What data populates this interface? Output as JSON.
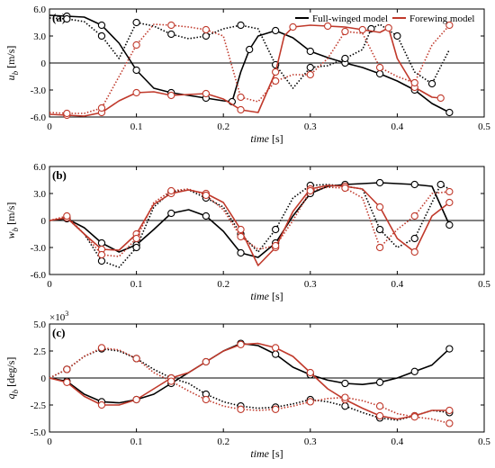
{
  "figure": {
    "legend": {
      "placement": "top-right (inside panel a)",
      "items": [
        {
          "label": "Full-winged model",
          "color": "#000000"
        },
        {
          "label": "Forewing model",
          "color": "#c0392b"
        }
      ]
    },
    "style_notes": "solid line = one wing trace, dotted line = other trace; open circle markers on each curve"
  },
  "chart_data": [
    {
      "type": "line",
      "panel_label": "(a)",
      "xlabel": "time [s]",
      "ylabel_main": "u",
      "ylabel_sub": "b",
      "ylabel_unit": "[m/s]",
      "xlim": [
        0,
        0.5
      ],
      "ylim": [
        -6,
        6
      ],
      "xticks": [
        "0",
        "0.1",
        "0.2",
        "0.3",
        "0.4",
        "0.5"
      ],
      "yticks": [
        "-6.0",
        "-3.0",
        "0",
        "3.0",
        "6.0"
      ],
      "zero_line": true,
      "series": [
        {
          "color": "#000000",
          "dash": "solid",
          "x": [
            0,
            0.02,
            0.04,
            0.06,
            0.08,
            0.1,
            0.12,
            0.14,
            0.16,
            0.18,
            0.2,
            0.21,
            0.22,
            0.23,
            0.24,
            0.26,
            0.28,
            0.3,
            0.32,
            0.34,
            0.36,
            0.38,
            0.4,
            0.42,
            0.44,
            0.46
          ],
          "y": [
            5.3,
            5.2,
            5.1,
            4.2,
            2.2,
            -0.8,
            -2.8,
            -3.3,
            -3.6,
            -3.9,
            -4.2,
            -4.3,
            -1.0,
            1.5,
            3.0,
            3.6,
            2.8,
            1.3,
            0.6,
            0.0,
            -0.5,
            -1.2,
            -2.0,
            -3.0,
            -4.5,
            -5.5
          ]
        },
        {
          "color": "#000000",
          "dash": "dotted",
          "x": [
            0,
            0.02,
            0.04,
            0.06,
            0.08,
            0.1,
            0.12,
            0.14,
            0.16,
            0.18,
            0.2,
            0.22,
            0.24,
            0.26,
            0.28,
            0.3,
            0.32,
            0.34,
            0.36,
            0.37,
            0.38,
            0.4,
            0.42,
            0.44,
            0.46
          ],
          "y": [
            5.0,
            4.9,
            4.6,
            3.0,
            0.5,
            4.5,
            4.1,
            3.2,
            2.7,
            3.0,
            3.8,
            4.2,
            3.8,
            -0.2,
            -2.8,
            -0.5,
            -0.3,
            0.5,
            1.5,
            3.8,
            4.3,
            3.0,
            -1.0,
            -2.3,
            1.5
          ]
        },
        {
          "color": "#c0392b",
          "dash": "solid",
          "x": [
            0,
            0.02,
            0.04,
            0.06,
            0.08,
            0.1,
            0.12,
            0.14,
            0.16,
            0.18,
            0.2,
            0.22,
            0.24,
            0.26,
            0.27,
            0.28,
            0.3,
            0.32,
            0.34,
            0.36,
            0.38,
            0.39,
            0.4,
            0.42,
            0.44,
            0.45
          ],
          "y": [
            -5.7,
            -5.8,
            -5.9,
            -5.5,
            -4.2,
            -3.3,
            -3.2,
            -3.6,
            -3.5,
            -3.4,
            -4.0,
            -5.2,
            -5.5,
            -1.0,
            3.0,
            4.0,
            4.2,
            4.1,
            4.0,
            3.7,
            3.4,
            3.9,
            0.5,
            -2.7,
            -3.8,
            -3.9
          ]
        },
        {
          "color": "#c0392b",
          "dash": "dotted",
          "x": [
            0,
            0.02,
            0.04,
            0.06,
            0.08,
            0.1,
            0.12,
            0.14,
            0.16,
            0.18,
            0.2,
            0.22,
            0.24,
            0.26,
            0.28,
            0.3,
            0.32,
            0.34,
            0.36,
            0.38,
            0.4,
            0.42,
            0.44,
            0.46
          ],
          "y": [
            -5.5,
            -5.6,
            -5.6,
            -5.0,
            -1.5,
            2.0,
            4.3,
            4.2,
            4.0,
            3.7,
            3.0,
            -3.8,
            -4.3,
            -2.0,
            -1.3,
            -1.3,
            0.5,
            3.5,
            3.3,
            -0.5,
            -1.5,
            -2.2,
            2.0,
            4.2
          ]
        }
      ]
    },
    {
      "type": "line",
      "panel_label": "(b)",
      "xlabel": "time [s]",
      "ylabel_main": "w",
      "ylabel_sub": "b",
      "ylabel_unit": "[m/s]",
      "xlim": [
        0,
        0.5
      ],
      "ylim": [
        -6,
        6
      ],
      "xticks": [
        "0",
        "0.1",
        "0.2",
        "0.3",
        "0.4",
        "0.5"
      ],
      "yticks": [
        "-6.0",
        "-3.0",
        "0",
        "3.0",
        "6.0"
      ],
      "zero_line": true,
      "series": [
        {
          "color": "#000000",
          "dash": "solid",
          "x": [
            0,
            0.02,
            0.04,
            0.06,
            0.08,
            0.1,
            0.12,
            0.14,
            0.16,
            0.18,
            0.2,
            0.22,
            0.24,
            0.26,
            0.28,
            0.3,
            0.32,
            0.34,
            0.36,
            0.38,
            0.4,
            0.42,
            0.44,
            0.46
          ],
          "y": [
            0,
            0.2,
            -0.8,
            -2.5,
            -3.5,
            -2.7,
            -1.0,
            0.8,
            1.2,
            0.5,
            -1.2,
            -3.6,
            -4.1,
            -2.5,
            0.5,
            3.0,
            3.8,
            4.0,
            4.1,
            4.2,
            4.1,
            4.0,
            3.8,
            -0.5
          ]
        },
        {
          "color": "#000000",
          "dash": "dotted",
          "x": [
            0,
            0.02,
            0.04,
            0.06,
            0.08,
            0.1,
            0.12,
            0.14,
            0.16,
            0.18,
            0.2,
            0.22,
            0.24,
            0.26,
            0.28,
            0.3,
            0.32,
            0.34,
            0.36,
            0.38,
            0.4,
            0.42,
            0.44,
            0.45,
            0.46
          ],
          "y": [
            0,
            0.3,
            -1.5,
            -4.5,
            -5.2,
            -3.0,
            1.5,
            3.2,
            3.4,
            2.5,
            1.5,
            -1.5,
            -3.5,
            -1.0,
            2.5,
            3.9,
            4.0,
            3.8,
            3.5,
            -1.0,
            -3.0,
            -2.0,
            2.0,
            4.0,
            3.5
          ]
        },
        {
          "color": "#c0392b",
          "dash": "solid",
          "x": [
            0,
            0.02,
            0.04,
            0.06,
            0.08,
            0.1,
            0.12,
            0.14,
            0.16,
            0.18,
            0.2,
            0.22,
            0.24,
            0.26,
            0.28,
            0.3,
            0.32,
            0.34,
            0.36,
            0.38,
            0.4,
            0.42,
            0.44,
            0.46
          ],
          "y": [
            0,
            0.3,
            -1.5,
            -3.2,
            -3.3,
            -1.5,
            1.8,
            3.0,
            3.4,
            3.0,
            2.0,
            -1.0,
            -5.0,
            -3.0,
            1.0,
            3.5,
            3.9,
            3.8,
            3.5,
            1.5,
            -2.0,
            -3.5,
            0.5,
            2.0
          ]
        },
        {
          "color": "#c0392b",
          "dash": "dotted",
          "x": [
            0,
            0.02,
            0.04,
            0.06,
            0.08,
            0.1,
            0.12,
            0.14,
            0.16,
            0.18,
            0.2,
            0.22,
            0.24,
            0.26,
            0.28,
            0.3,
            0.32,
            0.34,
            0.36,
            0.38,
            0.4,
            0.42,
            0.44,
            0.46
          ],
          "y": [
            0,
            0.5,
            -1.5,
            -3.8,
            -4.0,
            -2.0,
            2.0,
            3.3,
            3.5,
            2.8,
            1.2,
            -1.8,
            -3.2,
            -2.8,
            0.0,
            3.3,
            3.7,
            3.6,
            2.5,
            -3.0,
            -1.0,
            0.5,
            3.0,
            3.2
          ]
        }
      ]
    },
    {
      "type": "line",
      "panel_label": "(c)",
      "xlabel": "time [s]",
      "ylabel_main": "q",
      "ylabel_sub": "b",
      "ylabel_unit": "[deg/s]",
      "multiplier_label": "×10",
      "multiplier_exp": "3",
      "xlim": [
        0,
        0.5
      ],
      "ylim": [
        -5,
        5
      ],
      "xticks": [
        "0",
        "0.1",
        "0.2",
        "0.3",
        "0.4",
        "0.5"
      ],
      "yticks": [
        "-5.0",
        "-2.5",
        "0",
        "2.5",
        "5.0"
      ],
      "zero_line": true,
      "series": [
        {
          "color": "#000000",
          "dash": "solid",
          "x": [
            0,
            0.02,
            0.04,
            0.06,
            0.08,
            0.1,
            0.12,
            0.14,
            0.16,
            0.18,
            0.2,
            0.22,
            0.24,
            0.26,
            0.28,
            0.3,
            0.32,
            0.34,
            0.36,
            0.38,
            0.4,
            0.42,
            0.44,
            0.46
          ],
          "y": [
            0,
            -0.3,
            -1.5,
            -2.2,
            -2.3,
            -2.0,
            -1.5,
            -0.5,
            0.5,
            1.5,
            2.5,
            3.2,
            3.0,
            2.2,
            1.0,
            0.3,
            -0.2,
            -0.5,
            -0.6,
            -0.4,
            0.0,
            0.6,
            1.2,
            2.7
          ]
        },
        {
          "color": "#000000",
          "dash": "dotted",
          "x": [
            0,
            0.02,
            0.04,
            0.06,
            0.08,
            0.1,
            0.12,
            0.14,
            0.16,
            0.18,
            0.2,
            0.22,
            0.24,
            0.26,
            0.28,
            0.3,
            0.32,
            0.34,
            0.36,
            0.38,
            0.4,
            0.42,
            0.44,
            0.46
          ],
          "y": [
            0,
            0.8,
            2.0,
            2.7,
            2.5,
            1.8,
            0.8,
            0.0,
            -0.5,
            -1.5,
            -2.2,
            -2.6,
            -2.8,
            -2.7,
            -2.4,
            -2.0,
            -2.2,
            -2.6,
            -3.2,
            -3.7,
            -3.9,
            -3.5,
            -3.0,
            -3.2
          ]
        },
        {
          "color": "#c0392b",
          "dash": "solid",
          "x": [
            0,
            0.02,
            0.04,
            0.06,
            0.08,
            0.1,
            0.12,
            0.14,
            0.16,
            0.18,
            0.2,
            0.22,
            0.24,
            0.26,
            0.28,
            0.3,
            0.32,
            0.34,
            0.36,
            0.38,
            0.4,
            0.42,
            0.44,
            0.46
          ],
          "y": [
            0,
            -0.4,
            -1.7,
            -2.5,
            -2.5,
            -2.0,
            -1.0,
            0.0,
            0.5,
            1.5,
            2.5,
            3.1,
            3.2,
            2.8,
            2.0,
            0.5,
            -1.0,
            -2.0,
            -2.8,
            -3.5,
            -3.8,
            -3.5,
            -3.0,
            -3.0
          ]
        },
        {
          "color": "#c0392b",
          "dash": "dotted",
          "x": [
            0,
            0.02,
            0.04,
            0.06,
            0.08,
            0.1,
            0.12,
            0.14,
            0.16,
            0.18,
            0.2,
            0.22,
            0.24,
            0.26,
            0.28,
            0.3,
            0.32,
            0.34,
            0.36,
            0.38,
            0.4,
            0.42,
            0.44,
            0.46
          ],
          "y": [
            0,
            0.8,
            2.0,
            2.8,
            2.6,
            1.8,
            0.5,
            -0.3,
            -1.2,
            -2.0,
            -2.6,
            -2.9,
            -3.0,
            -2.9,
            -2.6,
            -2.2,
            -1.9,
            -1.8,
            -2.1,
            -2.6,
            -3.3,
            -3.6,
            -3.8,
            -4.2
          ]
        }
      ]
    }
  ]
}
